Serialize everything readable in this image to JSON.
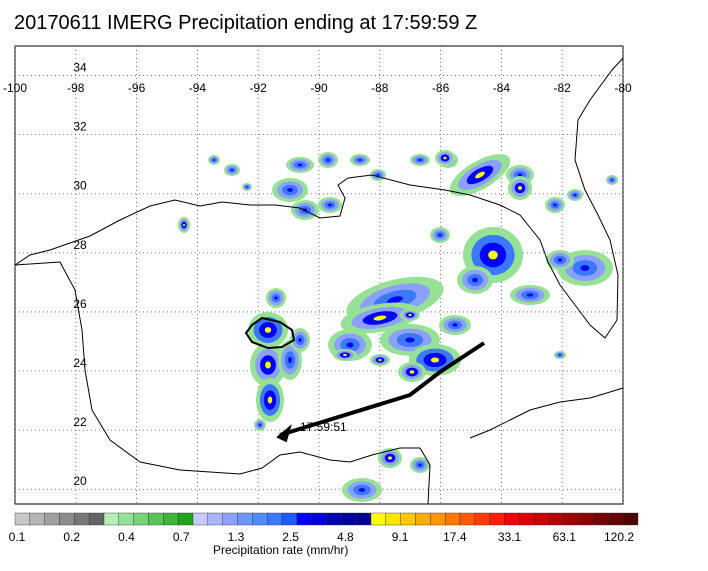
{
  "title": "20170611 IMERG Precipitation ending at 17:59:59 Z",
  "map": {
    "region": "Gulf of Mexico",
    "lon_range": [
      -100,
      -80
    ],
    "lat_range": [
      19.5,
      35
    ],
    "lon_ticks": [
      "-100",
      "-98",
      "-96",
      "-94",
      "-92",
      "-90",
      "-88",
      "-86",
      "-84",
      "-82",
      "-80"
    ],
    "lat_ticks": [
      "34",
      "32",
      "30",
      "28",
      "26",
      "24",
      "22",
      "20"
    ],
    "track_time_label": "17:59:51",
    "track_color": "#000000",
    "coast_color": "#000000",
    "grid": "dotted"
  },
  "colorbar": {
    "title": "Precipitation rate (mm/hr)",
    "tick_labels": [
      "0.1",
      "0.2",
      "0.4",
      "0.7",
      "1.3",
      "2.5",
      "4.8",
      "9.1",
      "17.4",
      "33.1",
      "63.1",
      "120.2"
    ],
    "colors": [
      "#c8c8c8",
      "#b4b4b4",
      "#a0a0a0",
      "#8c8c8c",
      "#787878",
      "#646464",
      "#b4f0b4",
      "#96e196",
      "#78d278",
      "#5ac35a",
      "#3cb43c",
      "#1ea51e",
      "#c8c8ff",
      "#aab4ff",
      "#8ca0ff",
      "#6e96ff",
      "#508cff",
      "#3c78ff",
      "#1e5aff",
      "#0000ff",
      "#0000dc",
      "#0000b4",
      "#0000a0",
      "#000096",
      "#ffff00",
      "#ffe600",
      "#ffc800",
      "#ffaa00",
      "#ff9600",
      "#ff7800",
      "#ff5a00",
      "#ff3c00",
      "#ff1e00",
      "#f00000",
      "#dc0000",
      "#c80000",
      "#b40000",
      "#a00000",
      "#8c0000",
      "#780000",
      "#640000",
      "#500000"
    ]
  }
}
